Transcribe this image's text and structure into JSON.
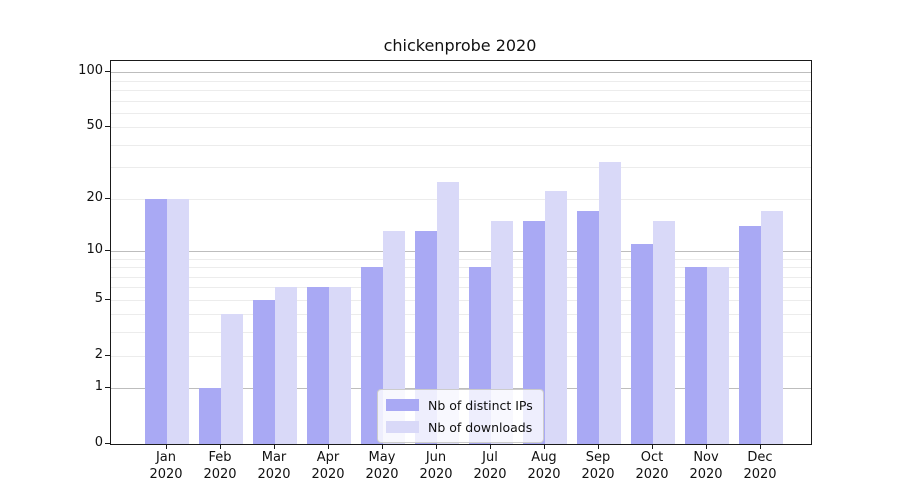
{
  "title": "chickenprobe 2020",
  "legend": [
    {
      "label": "Nb of distinct IPs",
      "color": "#a9a9f4"
    },
    {
      "label": "Nb of downloads",
      "color": "#d9d9f8"
    }
  ],
  "chart_data": {
    "type": "bar",
    "title": "chickenprobe 2020",
    "categories": [
      "Jan 2020",
      "Feb 2020",
      "Mar 2020",
      "Apr 2020",
      "May 2020",
      "Jun 2020",
      "Jul 2020",
      "Aug 2020",
      "Sep 2020",
      "Oct 2020",
      "Nov 2020",
      "Dec 2020"
    ],
    "series": [
      {
        "name": "Nb of distinct IPs",
        "color": "#a9a9f4",
        "values": [
          20,
          1,
          5,
          6,
          8,
          13,
          8,
          15,
          17,
          11,
          8,
          14
        ]
      },
      {
        "name": "Nb of downloads",
        "color": "#d9d9f8",
        "values": [
          20,
          4,
          6,
          6,
          13,
          25,
          15,
          22,
          32,
          15,
          8,
          17
        ]
      }
    ],
    "xlabel": "",
    "ylabel": "",
    "yscale": "log(1+y)",
    "ylim": [
      0,
      117
    ],
    "y_tick_values": [
      0,
      1,
      2,
      5,
      10,
      20,
      50,
      100
    ],
    "y_tick_labels": [
      "0",
      "1",
      "2",
      "5",
      "10",
      "20",
      "50",
      "100"
    ],
    "major_gridlines": [
      1,
      10,
      100
    ],
    "minor_gridlines": [
      2,
      3,
      4,
      5,
      6,
      7,
      8,
      9,
      20,
      30,
      40,
      50,
      60,
      70,
      80,
      90
    ],
    "grid": true,
    "legend_position": "lower center",
    "colors": {
      "bar_dark": "#a9a9f4",
      "bar_light": "#d9d9f8",
      "grid_major": "#bdbdbd",
      "grid_minor": "#ececec",
      "spine": "#1a1a1a"
    }
  }
}
